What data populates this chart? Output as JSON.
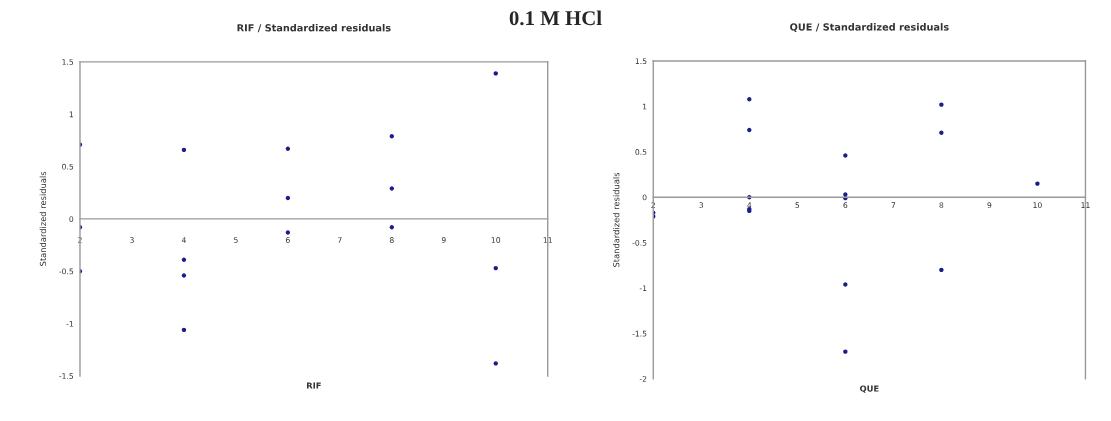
{
  "chart_data": [
    {
      "type": "scatter",
      "title": "RIF / Standardized residuals",
      "xlabel": "RIF",
      "ylabel": "Standardized residuals",
      "annotations": [
        "0.1 M HCl"
      ],
      "x": [
        2,
        2,
        2,
        4,
        4,
        4,
        4,
        6,
        6,
        6,
        8,
        8,
        8,
        10,
        10,
        10
      ],
      "series": [
        {
          "color": "#1c1c8a",
          "values": [
            0.71,
            -0.08,
            -0.5,
            0.66,
            -0.39,
            -0.54,
            -1.06,
            0.67,
            0.2,
            -0.13,
            0.79,
            0.29,
            -0.08,
            1.39,
            -0.47,
            -1.38
          ]
        }
      ],
      "xlim": [
        2,
        11
      ],
      "xticks": [
        2,
        3,
        4,
        5,
        6,
        7,
        8,
        9,
        10,
        11
      ],
      "ylim": [
        -1.5,
        1.5
      ],
      "yticks": [
        -1.5,
        -1,
        -0.5,
        0,
        0.5,
        1,
        1.5
      ],
      "marker": "circle",
      "grid": false
    },
    {
      "type": "scatter",
      "title": "QUE / Standardized residuals",
      "xlabel": "QUE",
      "ylabel": "Standardized residuals",
      "x": [
        2,
        2,
        4,
        4,
        4,
        4,
        4,
        6,
        6,
        6,
        6,
        6,
        8,
        8,
        8,
        10
      ],
      "series": [
        {
          "color": "#1c1c8a",
          "values": [
            -0.17,
            -0.21,
            1.08,
            0.74,
            0,
            -0.13,
            -0.15,
            0.46,
            0.03,
            -0.01,
            -0.96,
            -1.7,
            1.02,
            0.71,
            -0.8,
            0.15
          ]
        }
      ],
      "xlim": [
        2,
        11
      ],
      "xticks": [
        2,
        3,
        4,
        5,
        6,
        7,
        8,
        9,
        10,
        11
      ],
      "ylim": [
        -2,
        1.5
      ],
      "yticks": [
        -2,
        -1.5,
        -1,
        -0.5,
        0,
        0.5,
        1,
        1.5
      ],
      "marker": "circle",
      "grid": false
    }
  ]
}
